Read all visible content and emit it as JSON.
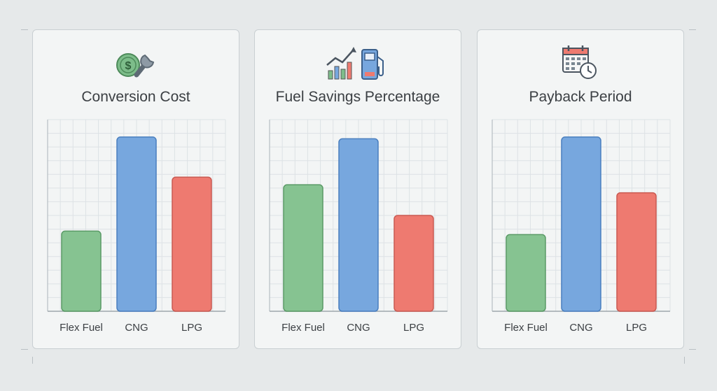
{
  "panels": [
    {
      "title": "Conversion Cost",
      "icon": "money-wrench-icon"
    },
    {
      "title": "Fuel Savings Percentage",
      "icon": "growth-chart-fuel-pump-icon"
    },
    {
      "title": "Payback Period",
      "icon": "calendar-clock-icon"
    }
  ],
  "colors": {
    "Flex Fuel": "#86c391",
    "CNG": "#77a7de",
    "LPG": "#ee7a70"
  },
  "chart_data": [
    {
      "type": "bar",
      "title": "Conversion Cost",
      "categories": [
        "Flex Fuel",
        "CNG",
        "LPG"
      ],
      "values": [
        4.6,
        10,
        7.7
      ],
      "ylim": [
        0,
        11
      ],
      "grid": true
    },
    {
      "type": "bar",
      "title": "Fuel Savings Percentage",
      "categories": [
        "Flex Fuel",
        "CNG",
        "LPG"
      ],
      "values": [
        6.6,
        9,
        5.0
      ],
      "ylim": [
        0,
        10
      ],
      "grid": true
    },
    {
      "type": "bar",
      "title": "Payback Period",
      "categories": [
        "Flex Fuel",
        "CNG",
        "LPG"
      ],
      "values": [
        4.4,
        10,
        6.8
      ],
      "ylim": [
        0,
        11
      ],
      "grid": true
    }
  ]
}
